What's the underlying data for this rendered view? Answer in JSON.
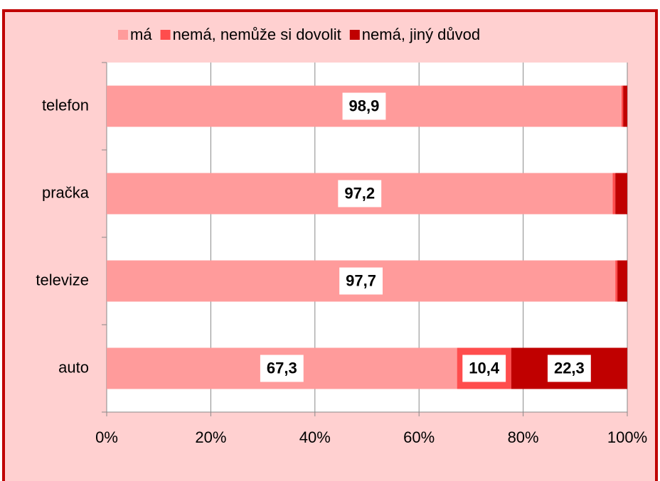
{
  "chart_data": {
    "type": "stacked_barh",
    "categories": [
      "telefon",
      "pračka",
      "televize",
      "auto"
    ],
    "series": [
      {
        "name": "má",
        "color": "#ff9b9b",
        "values": [
          98.9,
          97.2,
          97.7,
          67.3
        ],
        "value_labels": [
          "98,9",
          "97,2",
          "97,7",
          "67,3"
        ]
      },
      {
        "name": "nemá, nemůže si dovolit",
        "color": "#ff4d4d",
        "values": [
          0.3,
          0.5,
          0.4,
          10.4
        ],
        "value_labels": [
          null,
          null,
          null,
          "10,4"
        ]
      },
      {
        "name": "nemá, jiný důvod",
        "color": "#c00000",
        "values": [
          0.8,
          2.3,
          1.9,
          22.3
        ],
        "value_labels": [
          null,
          null,
          null,
          "22,3"
        ]
      }
    ],
    "xlim": [
      0,
      100
    ],
    "xticks": [
      {
        "value": 0,
        "label": "0%"
      },
      {
        "value": 20,
        "label": "20%"
      },
      {
        "value": 40,
        "label": "40%"
      },
      {
        "value": 60,
        "label": "60%"
      },
      {
        "value": 80,
        "label": "80%"
      },
      {
        "value": 100,
        "label": "100%"
      }
    ],
    "grid": true,
    "legend": "top"
  }
}
